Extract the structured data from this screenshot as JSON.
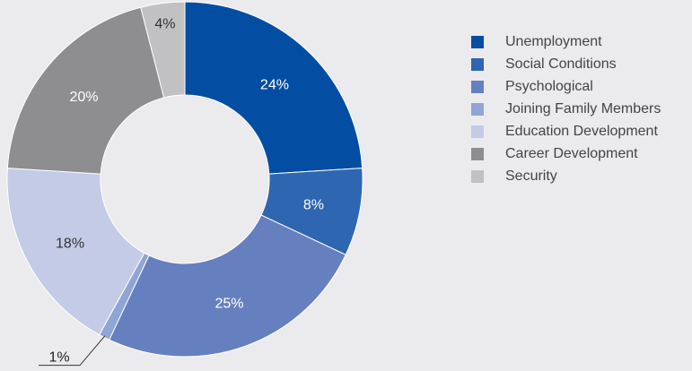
{
  "chart_data": {
    "type": "pie",
    "title": "",
    "categories": [
      "Unemployment",
      "Social Conditions",
      "Psychological",
      "Joining Family Members",
      "Education Development",
      "Career Development",
      "Security"
    ],
    "values": [
      24,
      8,
      25,
      1,
      18,
      20,
      4
    ],
    "labels": [
      "24%",
      "8%",
      "25%",
      "1%",
      "18%",
      "20%",
      "4%"
    ],
    "colors": [
      "#034ea2",
      "#2e66b1",
      "#6680bf",
      "#8ea5d5",
      "#c3cbe6",
      "#8e8e90",
      "#c1c1c3"
    ],
    "label_colors": [
      "#ffffff",
      "#ffffff",
      "#ffffff",
      "#222222",
      "#333333",
      "#ffffff",
      "#333333"
    ],
    "donut": true,
    "legend_position": "right"
  }
}
